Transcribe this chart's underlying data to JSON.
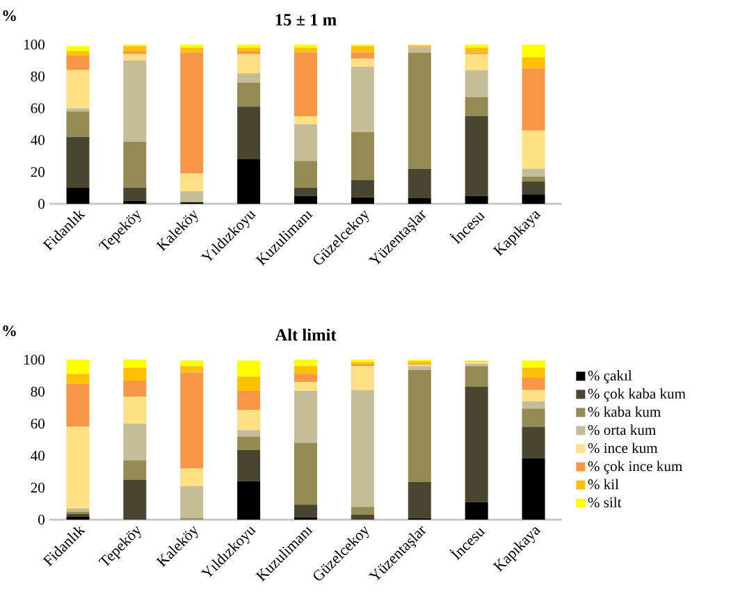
{
  "chart_data": [
    {
      "type": "bar",
      "stacked": true,
      "title": "15 ± 1 m",
      "ylabel": "%",
      "categories": [
        "Fidanlık",
        "Tepeköy",
        "Kaleköy",
        "Yıldızkoyu",
        "Kuzulimanı",
        "Güzelcekoy",
        "Yüzentaşlar",
        "İncesu",
        "Kapıkaya"
      ],
      "ylim": [
        0,
        100
      ],
      "yticks": [
        0,
        20,
        40,
        60,
        80,
        100
      ],
      "series": [
        {
          "color": "#000000",
          "values": [
            10,
            2,
            1,
            28,
            5,
            4,
            3.5,
            5,
            6
          ]
        },
        {
          "color": "#4a4530",
          "values": [
            32,
            8,
            0,
            33,
            5,
            11,
            18.5,
            50,
            8
          ]
        },
        {
          "color": "#948a54",
          "values": [
            16,
            29,
            0,
            15,
            17,
            30,
            73,
            12,
            3
          ]
        },
        {
          "color": "#c4bd97",
          "values": [
            2,
            51,
            7,
            6,
            23,
            41,
            3.5,
            17,
            5
          ]
        },
        {
          "color": "#ffe085",
          "values": [
            24,
            4,
            11,
            12,
            5,
            5,
            0,
            10,
            24
          ]
        },
        {
          "color": "#f79646",
          "values": [
            9,
            2,
            76,
            2,
            40,
            4,
            0.5,
            1,
            39
          ]
        },
        {
          "color": "#ffc000",
          "values": [
            3,
            3,
            3,
            2,
            3,
            4,
            0.5,
            3,
            7
          ]
        },
        {
          "color": "#ffff00",
          "values": [
            3,
            1,
            2,
            2,
            2,
            1,
            0.5,
            2,
            8
          ]
        }
      ]
    },
    {
      "type": "bar",
      "stacked": true,
      "title": "Alt limit",
      "ylabel": "%",
      "categories": [
        "Fidanlık",
        "Tepeköy",
        "Kaleköy",
        "Yıldızkoyu",
        "Kuzulimanı",
        "Güzelcekoy",
        "Yüzentaşlar",
        "İncesu",
        "Kapıkaya"
      ],
      "ylim": [
        0,
        100
      ],
      "yticks": [
        0,
        20,
        40,
        60,
        80,
        100
      ],
      "legend": "right",
      "series": [
        {
          "name": "% çakıl",
          "color": "#000000",
          "values": [
            2,
            0,
            0,
            24,
            1.5,
            0,
            1,
            11,
            38.5
          ]
        },
        {
          "name": "% çok kaba kum",
          "color": "#4a4530",
          "values": [
            1.5,
            25,
            0,
            19.5,
            8,
            3,
            22.5,
            72,
            19.5
          ]
        },
        {
          "name": "% kaba kum",
          "color": "#948a54",
          "values": [
            1.5,
            12,
            1,
            8.5,
            38.5,
            5,
            70,
            13,
            11.5
          ]
        },
        {
          "name": "% orta kum",
          "color": "#c4bd97",
          "values": [
            2,
            23,
            20,
            4,
            32.5,
            73,
            2.5,
            1.5,
            4.5
          ]
        },
        {
          "name": "% ince kum",
          "color": "#ffe085",
          "values": [
            51,
            17,
            11,
            12.5,
            5.5,
            15,
            1,
            1,
            7
          ]
        },
        {
          "name": "% çok ince kum",
          "color": "#f79646",
          "values": [
            27,
            10,
            60,
            12,
            5,
            1,
            0.5,
            0,
            8
          ]
        },
        {
          "name": "% kil",
          "color": "#ffc000",
          "values": [
            6,
            8,
            4,
            9,
            5,
            1.5,
            1.5,
            0.5,
            6
          ]
        },
        {
          "name": "% silt",
          "color": "#ffff00",
          "values": [
            9,
            5,
            3.5,
            10,
            4,
            1.5,
            1,
            0.5,
            4.5
          ]
        }
      ]
    }
  ]
}
